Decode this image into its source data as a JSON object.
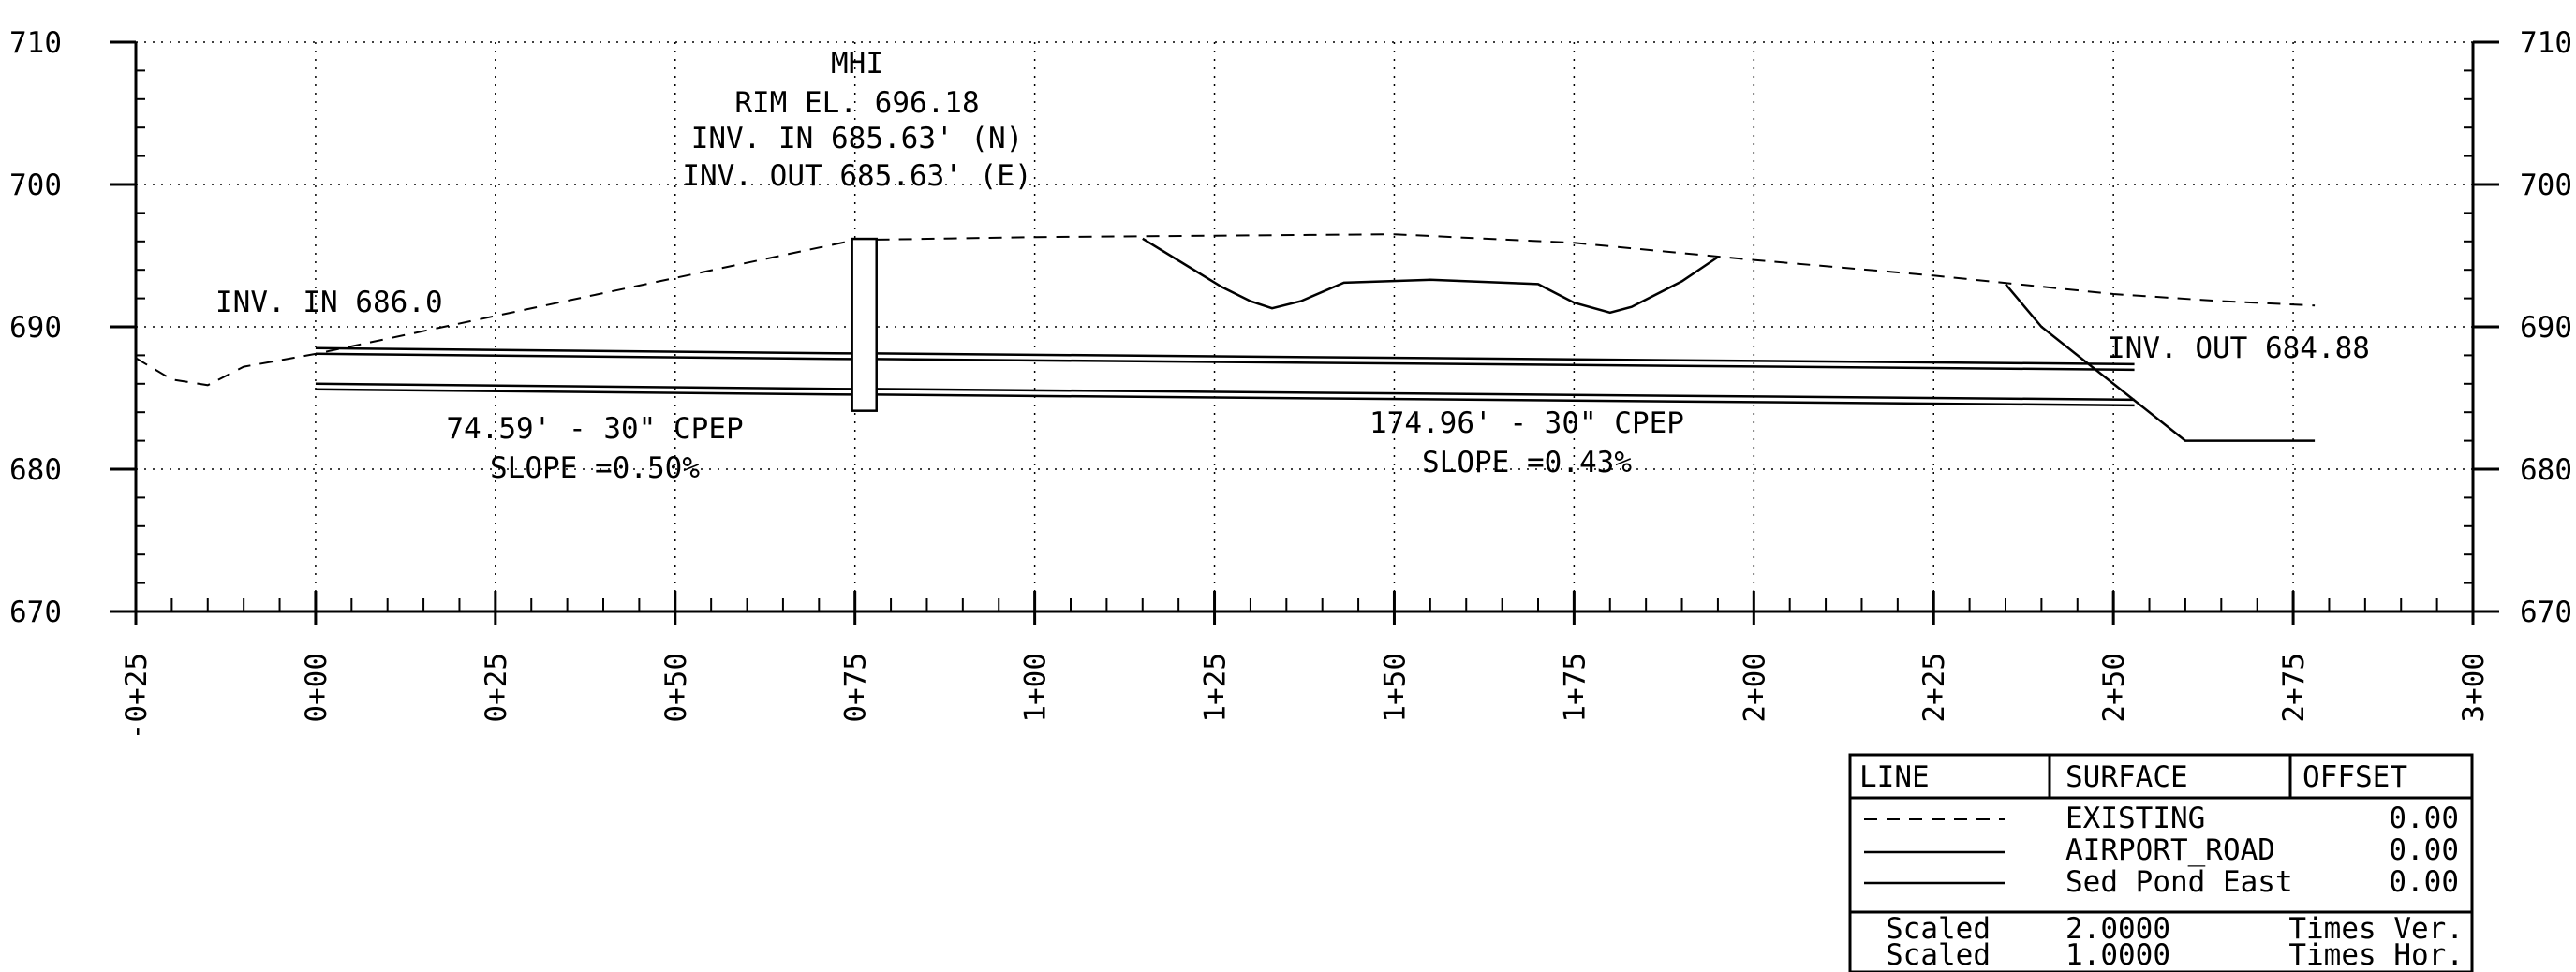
{
  "chart_data": {
    "type": "line",
    "title": "",
    "xlabel": "",
    "ylabel": "",
    "xlim": [
      -25,
      300
    ],
    "ylim": [
      670,
      710
    ],
    "grid": true,
    "y_ticks": [
      "670",
      "680",
      "690",
      "700",
      "710"
    ],
    "x_ticks": [
      "-0+25",
      "0+00",
      "0+25",
      "0+50",
      "0+75",
      "1+00",
      "1+25",
      "1+50",
      "1+75",
      "2+00",
      "2+25",
      "2+50",
      "2+75",
      "3+00"
    ],
    "series": [
      {
        "name": "EXISTING",
        "points": [
          [
            -25,
            687.8
          ],
          [
            -20,
            686.3
          ],
          [
            -15,
            685.9
          ],
          [
            -10,
            687.2
          ],
          [
            0,
            688.1
          ],
          [
            75,
            696.1
          ],
          [
            100,
            696.3
          ],
          [
            125,
            696.4
          ],
          [
            150,
            696.5
          ],
          [
            175,
            695.9
          ],
          [
            200,
            694.7
          ],
          [
            225,
            693.6
          ],
          [
            250,
            692.3
          ],
          [
            265,
            691.8
          ],
          [
            278,
            691.5
          ]
        ]
      },
      {
        "name": "AIRPORT_ROAD",
        "points": [
          [
            115,
            696.2
          ],
          [
            126,
            692.8
          ],
          [
            130,
            691.8
          ],
          [
            133,
            691.3
          ],
          [
            137,
            691.8
          ],
          [
            143,
            693.1
          ],
          [
            155,
            693.3
          ],
          [
            170,
            693.0
          ],
          [
            175,
            691.7
          ],
          [
            180,
            691.0
          ],
          [
            183,
            691.4
          ],
          [
            190,
            693.2
          ],
          [
            195,
            694.9
          ]
        ]
      },
      {
        "name": "Sed Pond East",
        "points": [
          [
            235,
            693.0
          ],
          [
            240,
            690.0
          ],
          [
            260,
            682.0
          ],
          [
            278,
            682.0
          ]
        ]
      }
    ],
    "pipes": [
      {
        "start": 0,
        "end": 74.59,
        "crown_start": 688.5,
        "crown_end": 688.13,
        "invert_start": 686.0,
        "invert_end": 685.63
      },
      {
        "start": 77.96,
        "end": 252.92,
        "crown_start": 688.13,
        "crown_end": 687.38,
        "invert_start": 685.63,
        "invert_end": 684.88
      }
    ],
    "manhole": {
      "x_left": 74.6,
      "x_right": 78,
      "top": 696.18,
      "bottom": 684.1
    },
    "annotations": {
      "mh_name": "MHI",
      "mh_rim": "RIM EL. 696.18",
      "mh_inv_in": "INV. IN 685.63' (N)",
      "mh_inv_out": "INV. OUT 685.63' (E)",
      "inv_in_start": "INV. IN 686.0",
      "inv_out_end": "INV. OUT 684.88",
      "pipe1_label": "74.59' - 30\" CPEP",
      "pipe1_slope": "SLOPE =0.50%",
      "pipe2_label": "174.96' - 30\" CPEP",
      "pipe2_slope": "SLOPE =0.43%"
    },
    "legend": {
      "headers": [
        "LINE",
        "SURFACE",
        "OFFSET"
      ],
      "rows": [
        {
          "line_style": "dashed",
          "surface": "EXISTING",
          "offset": "0.00"
        },
        {
          "line_style": "solid",
          "surface": "AIRPORT_ROAD",
          "offset": "0.00"
        },
        {
          "line_style": "solid",
          "surface": "Sed Pond East",
          "offset": "0.00"
        }
      ],
      "scale_rows": [
        {
          "label": "Scaled",
          "value": "2.0000",
          "unit": "Times Ver."
        },
        {
          "label": "Scaled",
          "value": "1.0000",
          "unit": "Times Hor."
        }
      ]
    }
  }
}
